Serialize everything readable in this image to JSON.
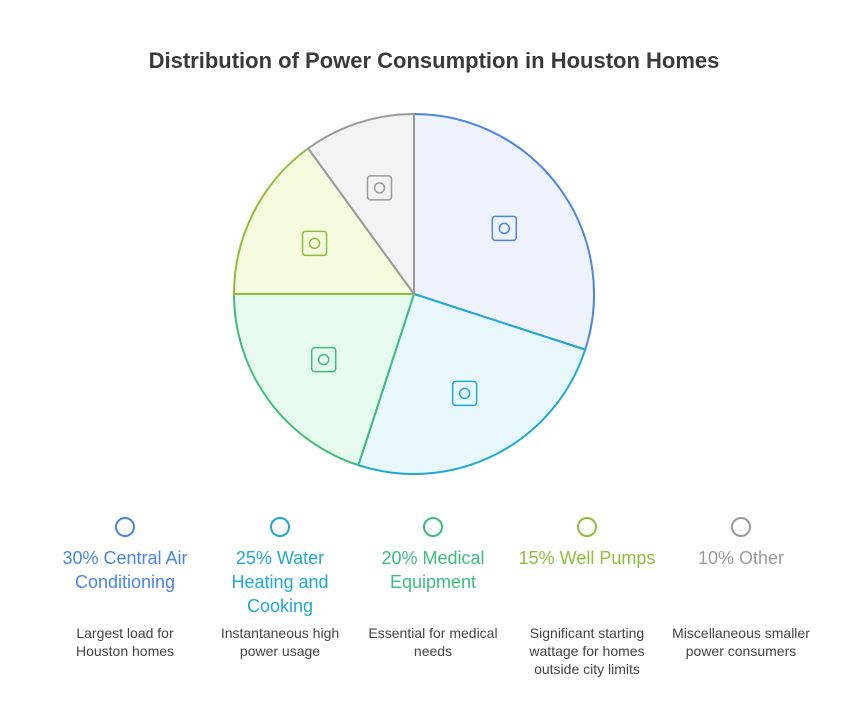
{
  "chart_data": {
    "type": "pie",
    "title": "Distribution of Power Consumption in Houston Homes",
    "categories": [
      "30% Central Air Conditioning",
      "25% Water Heating and Cooking",
      "20% Medical Equipment",
      "15% Well Pumps",
      "10% Other"
    ],
    "values": [
      30,
      25,
      20,
      15,
      10
    ],
    "descriptions": [
      "Largest load for Houston homes",
      "Instantaneous high power usage",
      "Essential for medical needs",
      "Significant starting wattage for homes outside city limits",
      "Miscellaneous smaller power consumers"
    ],
    "colors": [
      "#4a86e0",
      "#1fa8d4",
      "#3dbd7d",
      "#8fbd3a",
      "#9a9a9a"
    ],
    "fills": [
      "#edf2fd",
      "#e7f7fc",
      "#e6faee",
      "#f4fbdf",
      "#f3f3f3"
    ]
  }
}
